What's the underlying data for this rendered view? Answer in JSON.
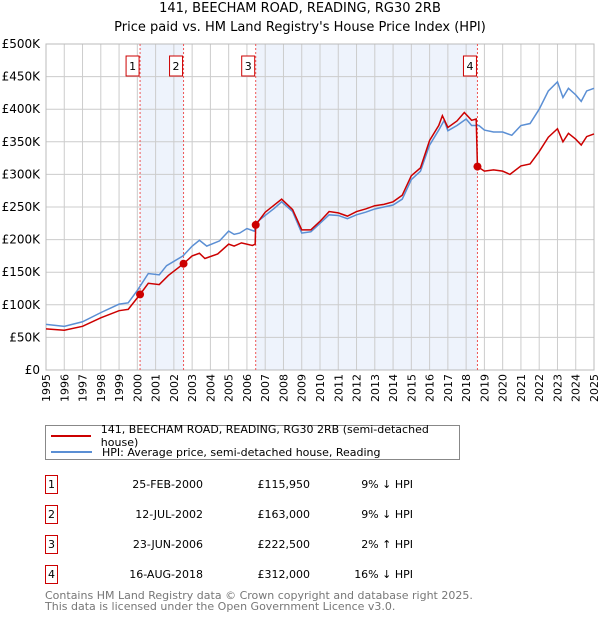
{
  "title": "141, BEECHAM ROAD, READING, RG30 2RB",
  "subtitle": "Price paid vs. HM Land Registry's House Price Index (HPI)",
  "chart_data": {
    "type": "line",
    "title": "141, BEECHAM ROAD, READING, RG30 2RB - Price paid vs. HM Land Registry's House Price Index (HPI)",
    "xlim": [
      1995,
      2025
    ],
    "ylim": [
      0,
      500000
    ],
    "x_ticks": [
      "1995",
      "1996",
      "1997",
      "1998",
      "1999",
      "2000",
      "2001",
      "2002",
      "2003",
      "2004",
      "2005",
      "2006",
      "2007",
      "2008",
      "2009",
      "2010",
      "2011",
      "2012",
      "2013",
      "2014",
      "2015",
      "2016",
      "2017",
      "2018",
      "2019",
      "2020",
      "2021",
      "2022",
      "2023",
      "2024",
      "2025"
    ],
    "y_ticks": [
      {
        "v": 0,
        "label": "£0"
      },
      {
        "v": 50000,
        "label": "£50K"
      },
      {
        "v": 100000,
        "label": "£100K"
      },
      {
        "v": 150000,
        "label": "£150K"
      },
      {
        "v": 200000,
        "label": "£200K"
      },
      {
        "v": 250000,
        "label": "£250K"
      },
      {
        "v": 300000,
        "label": "£300K"
      },
      {
        "v": 350000,
        "label": "£350K"
      },
      {
        "v": 400000,
        "label": "£400K"
      },
      {
        "v": 450000,
        "label": "£450K"
      },
      {
        "v": 500000,
        "label": "£500K"
      }
    ],
    "grid": true,
    "colors": {
      "property": "#cc0000",
      "hpi": "#5b8fd4",
      "shade": "#eef3fc"
    },
    "shaded": [
      [
        2000.15,
        2002.53
      ],
      [
        2006.48,
        2018.62
      ]
    ],
    "series": [
      {
        "name": "141, BEECHAM ROAD, READING, RG30 2RB (semi-detached house)",
        "color": "#cc0000",
        "x": [
          1995,
          1996,
          1997,
          1998,
          1999,
          1999.5,
          2000.15,
          2000.6,
          2001.2,
          2001.7,
          2002.53,
          2003,
          2003.4,
          2003.7,
          2004.4,
          2005,
          2005.3,
          2005.7,
          2006.3,
          2006.45,
          2006.48,
          2007,
          2007.9,
          2008.5,
          2009,
          2009.5,
          2010,
          2010.5,
          2011,
          2011.5,
          2012,
          2012.5,
          2013,
          2013.5,
          2014,
          2014.5,
          2015,
          2015.5,
          2016,
          2016.5,
          2016.7,
          2017,
          2017.5,
          2017.9,
          2018.3,
          2018.55,
          2018.62,
          2019,
          2019.5,
          2020,
          2020.4,
          2021,
          2021.5,
          2022,
          2022.5,
          2023,
          2023.3,
          2023.6,
          2024,
          2024.3,
          2024.6,
          2025
        ],
        "y": [
          63,
          61,
          67,
          80,
          91,
          93,
          116,
          133,
          131,
          145,
          163,
          175,
          179,
          171,
          178,
          193,
          190,
          195,
          191,
          193,
          222.5,
          242,
          262,
          246,
          215,
          215,
          228,
          243,
          241,
          236,
          243,
          247,
          252,
          254,
          258,
          268,
          298,
          310,
          352,
          375,
          390,
          372,
          382,
          395,
          383,
          385,
          312,
          305,
          307,
          305,
          300,
          313,
          316,
          335,
          357,
          370,
          350,
          363,
          354,
          345,
          358,
          362
        ]
      },
      {
        "name": "HPI: Average price, semi-detached house, Reading",
        "color": "#5b8fd4",
        "x": [
          1995,
          1996,
          1997,
          1998,
          1999,
          1999.5,
          2000,
          2000.6,
          2001.2,
          2001.6,
          2002.5,
          2003,
          2003.4,
          2003.8,
          2004.5,
          2005,
          2005.3,
          2005.6,
          2006,
          2006.4,
          2006.6,
          2007,
          2007.5,
          2007.9,
          2008.5,
          2009,
          2009.5,
          2010,
          2010.5,
          2011,
          2011.5,
          2012,
          2012.5,
          2013,
          2013.5,
          2014,
          2014.5,
          2015,
          2015.5,
          2016,
          2016.5,
          2016.8,
          2017,
          2017.5,
          2018,
          2018.3,
          2018.7,
          2019,
          2019.5,
          2020,
          2020.5,
          2021,
          2021.5,
          2022,
          2022.5,
          2023,
          2023.3,
          2023.6,
          2024,
          2024.3,
          2024.6,
          2025
        ],
        "y": [
          70,
          67,
          74,
          88,
          101,
          103,
          122,
          148,
          146,
          160,
          175,
          190,
          199,
          190,
          198,
          213,
          208,
          210,
          217,
          213,
          228,
          237,
          248,
          258,
          243,
          210,
          212,
          225,
          238,
          237,
          232,
          238,
          242,
          247,
          250,
          253,
          262,
          292,
          305,
          345,
          368,
          383,
          367,
          375,
          385,
          375,
          375,
          368,
          365,
          365,
          360,
          375,
          378,
          400,
          428,
          442,
          418,
          432,
          422,
          412,
          428,
          432
        ]
      }
    ],
    "y_units": "thousands GBP",
    "sales": [
      {
        "n": "1",
        "x": 2000.15,
        "y": 115.95
      },
      {
        "n": "2",
        "x": 2002.53,
        "y": 163
      },
      {
        "n": "3",
        "x": 2006.48,
        "y": 222.5
      },
      {
        "n": "4",
        "x": 2018.62,
        "y": 312
      }
    ]
  },
  "legend": {
    "property": "141, BEECHAM ROAD, READING, RG30 2RB (semi-detached house)",
    "hpi": "HPI: Average price, semi-detached house, Reading"
  },
  "transactions": [
    {
      "n": "1",
      "date": "25-FEB-2000",
      "price": "£115,950",
      "hpi": "9% ↓ HPI"
    },
    {
      "n": "2",
      "date": "12-JUL-2002",
      "price": "£163,000",
      "hpi": "9% ↓ HPI"
    },
    {
      "n": "3",
      "date": "23-JUN-2006",
      "price": "£222,500",
      "hpi": "2% ↑ HPI"
    },
    {
      "n": "4",
      "date": "16-AUG-2018",
      "price": "£312,000",
      "hpi": "16% ↓ HPI"
    }
  ],
  "footer": {
    "line1": "Contains HM Land Registry data © Crown copyright and database right 2025.",
    "line2": "This data is licensed under the Open Government Licence v3.0."
  }
}
